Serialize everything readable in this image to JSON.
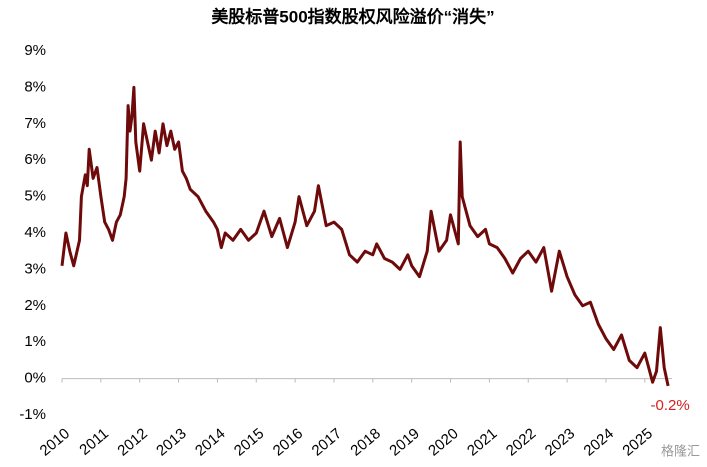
{
  "chart_data": {
    "type": "line",
    "title": "美股标普500指数股权风险溢价“消失”",
    "x": [
      2010.0,
      2010.1,
      2010.2,
      2010.3,
      2010.45,
      2010.5,
      2010.6,
      2010.65,
      2010.7,
      2010.8,
      2010.9,
      2011.0,
      2011.1,
      2011.2,
      2011.3,
      2011.4,
      2011.5,
      2011.6,
      2011.65,
      2011.7,
      2011.75,
      2011.8,
      2011.85,
      2011.9,
      2012.0,
      2012.1,
      2012.2,
      2012.3,
      2012.4,
      2012.5,
      2012.6,
      2012.7,
      2012.8,
      2012.9,
      2013.0,
      2013.1,
      2013.2,
      2013.3,
      2013.5,
      2013.7,
      2013.9,
      2014.0,
      2014.1,
      2014.2,
      2014.4,
      2014.6,
      2014.8,
      2015.0,
      2015.2,
      2015.4,
      2015.6,
      2015.8,
      2016.0,
      2016.1,
      2016.3,
      2016.5,
      2016.6,
      2016.8,
      2017.0,
      2017.2,
      2017.4,
      2017.6,
      2017.8,
      2018.0,
      2018.1,
      2018.3,
      2018.5,
      2018.7,
      2018.9,
      2019.0,
      2019.2,
      2019.4,
      2019.5,
      2019.7,
      2019.9,
      2020.0,
      2020.1,
      2020.2,
      2020.25,
      2020.3,
      2020.5,
      2020.7,
      2020.9,
      2021.0,
      2021.2,
      2021.4,
      2021.6,
      2021.8,
      2022.0,
      2022.2,
      2022.4,
      2022.6,
      2022.8,
      2023.0,
      2023.2,
      2023.4,
      2023.6,
      2023.8,
      2024.0,
      2024.2,
      2024.4,
      2024.6,
      2024.8,
      2025.0,
      2025.2,
      2025.3,
      2025.4,
      2025.5,
      2025.6
    ],
    "series": [
      {
        "color": "#6e0a0a",
        "values": [
          3.1,
          4.0,
          3.5,
          3.1,
          3.8,
          5.0,
          5.6,
          5.3,
          6.3,
          5.5,
          5.8,
          5.0,
          4.3,
          4.1,
          3.8,
          4.3,
          4.5,
          5.0,
          5.5,
          7.5,
          6.8,
          7.2,
          8.0,
          6.5,
          5.7,
          7.0,
          6.5,
          6.0,
          6.8,
          6.2,
          7.0,
          6.4,
          6.8,
          6.3,
          6.5,
          5.7,
          5.5,
          5.2,
          5.0,
          4.6,
          4.3,
          4.1,
          3.6,
          4.0,
          3.8,
          4.1,
          3.8,
          4.0,
          4.6,
          3.9,
          4.4,
          3.6,
          4.3,
          5.0,
          4.2,
          4.6,
          5.3,
          4.2,
          4.3,
          4.1,
          3.4,
          3.2,
          3.5,
          3.4,
          3.7,
          3.3,
          3.2,
          3.0,
          3.4,
          3.1,
          2.8,
          3.5,
          4.6,
          3.5,
          3.8,
          4.5,
          4.1,
          3.7,
          6.5,
          5.0,
          4.2,
          3.9,
          4.1,
          3.7,
          3.6,
          3.3,
          2.9,
          3.3,
          3.5,
          3.2,
          3.6,
          2.4,
          3.5,
          2.8,
          2.3,
          2.0,
          2.1,
          1.5,
          1.1,
          0.8,
          1.2,
          0.5,
          0.3,
          0.7,
          -0.1,
          0.2,
          1.4,
          0.3,
          -0.2
        ]
      }
    ],
    "annotation": {
      "x": 2025.6,
      "y": -0.2,
      "text": "-0.2%",
      "color": "#d32020"
    },
    "xlim": [
      2010,
      2025.7
    ],
    "xticks": [
      2010,
      2011,
      2012,
      2013,
      2014,
      2015,
      2016,
      2017,
      2018,
      2019,
      2020,
      2021,
      2022,
      2023,
      2024,
      2025
    ],
    "ylim": [
      -1,
      9
    ],
    "yticks": [
      {
        "value": -1,
        "label": "-1%"
      },
      {
        "value": 0,
        "label": "0%"
      },
      {
        "value": 1,
        "label": "1%"
      },
      {
        "value": 2,
        "label": "2%"
      },
      {
        "value": 3,
        "label": "3%"
      },
      {
        "value": 4,
        "label": "4%"
      },
      {
        "value": 5,
        "label": "5%"
      },
      {
        "value": 6,
        "label": "6%"
      },
      {
        "value": 7,
        "label": "7%"
      },
      {
        "value": 8,
        "label": "8%"
      },
      {
        "value": 9,
        "label": "9%"
      }
    ],
    "watermark": "格隆汇"
  }
}
